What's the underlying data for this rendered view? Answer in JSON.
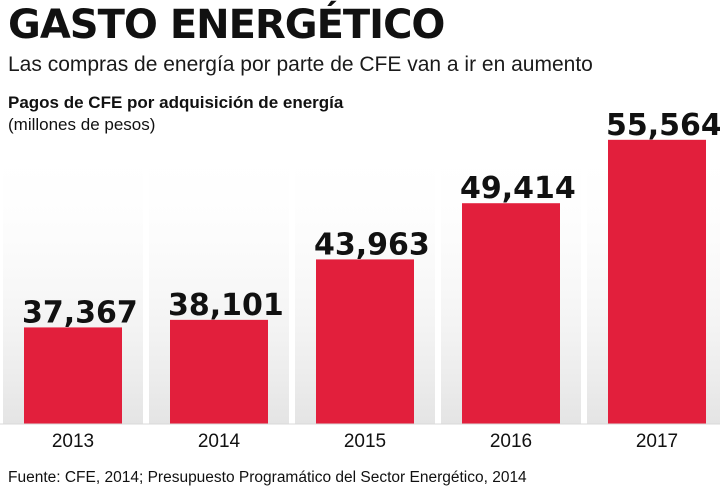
{
  "header": {
    "title": "GASTO ENERGÉTICO",
    "subtitle": "Las compras de energía por parte de CFE van a ir en aumento"
  },
  "chart_data": {
    "type": "bar",
    "title": "Pagos de CFE por adquisición de energía",
    "ylabel": "(millones de pesos)",
    "xlabel": "",
    "categories": [
      "2013",
      "2014",
      "2015",
      "2016",
      "2017"
    ],
    "values": [
      37367,
      38101,
      43963,
      49414,
      55564
    ],
    "value_labels": [
      "37,367",
      "38,101",
      "43,963",
      "49,414",
      "55,564"
    ],
    "ylim": [
      28000,
      57000
    ],
    "grid": false,
    "legend": "none",
    "bar_color": "#e21f3c"
  },
  "footer": {
    "source": "Fuente: CFE, 2014; Presupuesto Programático del Sector Energético, 2014"
  }
}
